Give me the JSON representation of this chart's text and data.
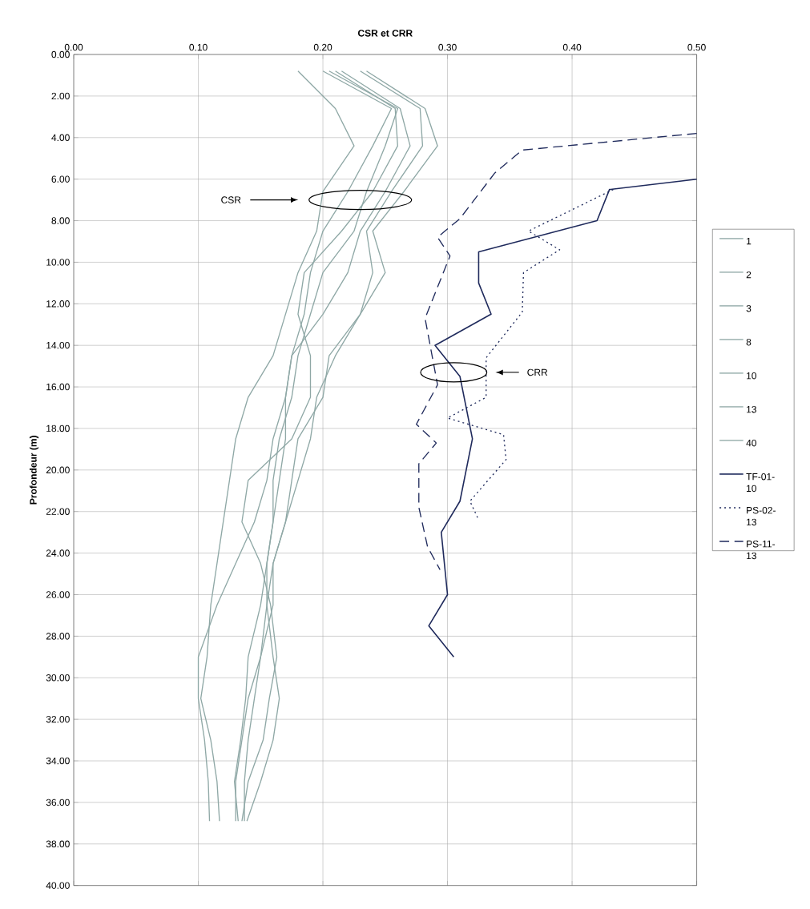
{
  "chart_data": {
    "type": "line",
    "xlabel": "CSR et CRR",
    "ylabel": "Profondeur (m)",
    "xlim": [
      0,
      0.5
    ],
    "xticks": [
      {
        "value": 0,
        "label": "0.00"
      },
      {
        "value": 0.1,
        "label": "0.10"
      },
      {
        "value": 0.2,
        "label": "0.20"
      },
      {
        "value": 0.3,
        "label": "0.30"
      },
      {
        "value": 0.4,
        "label": "0.40"
      },
      {
        "value": 0.5,
        "label": "0.50"
      }
    ],
    "ylim": [
      40,
      0
    ],
    "yticks": [
      {
        "value": 0,
        "label": "0.00"
      },
      {
        "value": 2,
        "label": "2.00"
      },
      {
        "value": 4,
        "label": "4.00"
      },
      {
        "value": 6,
        "label": "6.00"
      },
      {
        "value": 8,
        "label": "8.00"
      },
      {
        "value": 10,
        "label": "10.00"
      },
      {
        "value": 12,
        "label": "12.00"
      },
      {
        "value": 14,
        "label": "14.00"
      },
      {
        "value": 16,
        "label": "16.00"
      },
      {
        "value": 18,
        "label": "18.00"
      },
      {
        "value": 20,
        "label": "20.00"
      },
      {
        "value": 22,
        "label": "22.00"
      },
      {
        "value": 24,
        "label": "24.00"
      },
      {
        "value": 26,
        "label": "26.00"
      },
      {
        "value": 28,
        "label": "28.00"
      },
      {
        "value": 30,
        "label": "30.00"
      },
      {
        "value": 32,
        "label": "32.00"
      },
      {
        "value": 34,
        "label": "34.00"
      },
      {
        "value": 36,
        "label": "36.00"
      },
      {
        "value": 38,
        "label": "38.00"
      },
      {
        "value": 40,
        "label": "40.00"
      }
    ],
    "grid": true,
    "legend": "right",
    "marker": "none",
    "annotations": [
      "CSR",
      "CRR"
    ],
    "series": [
      {
        "name": "1",
        "color": "#8fa8a6",
        "line_style": "solid",
        "x": [
          0.18,
          0.21,
          0.225,
          0.2,
          0.195,
          0.18,
          0.17,
          0.16,
          0.14,
          0.13,
          0.125,
          0.12,
          0.115,
          0.11,
          0.107,
          0.102,
          0.11,
          0.115,
          0.117
        ],
        "values": [
          0.8,
          2.6,
          4.4,
          6.6,
          8.5,
          10.5,
          12.5,
          14.5,
          16.5,
          18.5,
          20.5,
          22.5,
          24.5,
          26.5,
          29,
          31,
          33,
          35,
          36.9
        ]
      },
      {
        "name": "2",
        "color": "#8fa8a6",
        "line_style": "solid",
        "x": [
          0.2,
          0.255,
          0.24,
          0.22,
          0.2,
          0.19,
          0.185,
          0.175,
          0.17,
          0.16,
          0.155,
          0.145,
          0.13,
          0.115,
          0.1,
          0.1,
          0.105,
          0.108,
          0.109
        ],
        "values": [
          0.8,
          2.6,
          4.4,
          6.6,
          8.5,
          10.5,
          12.5,
          14.5,
          16.5,
          18.5,
          20.5,
          22.5,
          24.5,
          26.5,
          29,
          31,
          33,
          35,
          36.9
        ]
      },
      {
        "name": "3",
        "color": "#8fa8a6",
        "line_style": "solid",
        "x": [
          0.205,
          0.26,
          0.25,
          0.235,
          0.225,
          0.2,
          0.19,
          0.18,
          0.175,
          0.165,
          0.16,
          0.16,
          0.155,
          0.15,
          0.14,
          0.138,
          0.134,
          0.129,
          0.132
        ],
        "values": [
          0.8,
          2.6,
          4.4,
          6.6,
          8.5,
          10.5,
          12.5,
          14.5,
          16.5,
          18.5,
          20.5,
          22.5,
          24.5,
          26.5,
          29,
          31,
          33,
          35,
          36.9
        ]
      },
      {
        "name": "8",
        "color": "#8fa8a6",
        "line_style": "solid",
        "x": [
          0.21,
          0.258,
          0.26,
          0.24,
          0.215,
          0.185,
          0.18,
          0.19,
          0.19,
          0.175,
          0.14,
          0.135,
          0.15,
          0.158,
          0.163,
          0.157,
          0.152,
          0.14,
          0.135
        ],
        "values": [
          0.8,
          2.6,
          4.4,
          6.6,
          8.5,
          10.5,
          12.5,
          14.5,
          16.5,
          18.5,
          20.5,
          22.5,
          24.5,
          26.5,
          29,
          31,
          33,
          35,
          36.9
        ]
      },
      {
        "name": "10",
        "color": "#8fa8a6",
        "line_style": "solid",
        "x": [
          0.215,
          0.262,
          0.27,
          0.25,
          0.23,
          0.22,
          0.2,
          0.175,
          0.17,
          0.17,
          0.165,
          0.16,
          0.155,
          0.155,
          0.15,
          0.145,
          0.14,
          0.137,
          0.137
        ],
        "values": [
          0.8,
          2.6,
          4.4,
          6.6,
          8.5,
          10.5,
          12.5,
          14.5,
          16.5,
          18.5,
          20.5,
          22.5,
          24.5,
          26.5,
          29,
          31,
          33,
          35,
          36.9
        ]
      },
      {
        "name": "13",
        "color": "#8fa8a6",
        "line_style": "solid",
        "x": [
          0.23,
          0.278,
          0.28,
          0.255,
          0.235,
          0.24,
          0.23,
          0.205,
          0.2,
          0.18,
          0.175,
          0.17,
          0.16,
          0.16,
          0.15,
          0.14,
          0.135,
          0.13,
          0.13
        ],
        "values": [
          0.8,
          2.6,
          4.4,
          6.6,
          8.5,
          10.5,
          12.5,
          14.5,
          16.5,
          18.5,
          20.5,
          22.5,
          24.5,
          26.5,
          29,
          31,
          33,
          35,
          36.9
        ]
      },
      {
        "name": "40",
        "color": "#8fa8a6",
        "line_style": "solid",
        "x": [
          0.235,
          0.282,
          0.292,
          0.265,
          0.24,
          0.25,
          0.23,
          0.21,
          0.195,
          0.19,
          0.18,
          0.17,
          0.16,
          0.155,
          0.16,
          0.165,
          0.16,
          0.15,
          0.139
        ],
        "values": [
          0.8,
          2.6,
          4.4,
          6.6,
          8.5,
          10.5,
          12.5,
          14.5,
          16.5,
          18.5,
          20.5,
          22.5,
          24.5,
          26.5,
          29,
          31,
          33,
          35,
          36.9
        ]
      },
      {
        "name": "TF-01-10",
        "color": "#1f2a5c",
        "line_style": "solid",
        "x": [
          0.5,
          0.43,
          0.42,
          0.325,
          0.325,
          0.335,
          0.29,
          0.31,
          0.315,
          0.32,
          0.31,
          0.295,
          0.3,
          0.285,
          0.305
        ],
        "values": [
          6,
          6.5,
          8,
          9.5,
          11,
          12.5,
          14,
          15.5,
          17,
          18.5,
          21.5,
          23,
          26,
          27.5,
          29
        ]
      },
      {
        "name": "PS-02-13",
        "color": "#1f2a5c",
        "line_style": "dotted",
        "x": [
          0.433,
          0.365,
          0.39,
          0.361,
          0.36,
          0.331,
          0.331,
          0.3,
          0.345,
          0.347,
          0.318,
          0.325
        ],
        "values": [
          6.5,
          8.5,
          9.4,
          10.5,
          12.4,
          14.6,
          16.5,
          17.5,
          18.3,
          19.5,
          21.5,
          22.4
        ]
      },
      {
        "name": "PS-11-13",
        "color": "#1f2a5c",
        "line_style": "dashed",
        "x": [
          0.5,
          0.36,
          0.338,
          0.31,
          0.292,
          0.302,
          0.282,
          0.292,
          0.275,
          0.291,
          0.277,
          0.277,
          0.284,
          0.294
        ],
        "values": [
          3.8,
          4.6,
          5.7,
          7.9,
          8.8,
          9.7,
          12.7,
          15.9,
          17.8,
          18.7,
          19.7,
          21.8,
          23.7,
          24.8
        ]
      }
    ]
  }
}
